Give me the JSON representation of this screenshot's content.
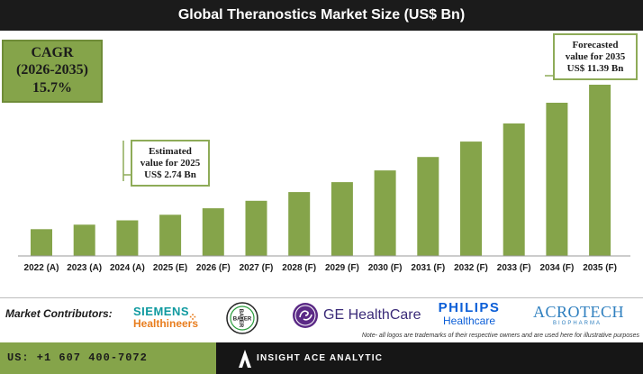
{
  "header": {
    "title": "Global Theranostics Market Size (US$ Bn)"
  },
  "cagr": {
    "label": "CAGR",
    "period": "(2026-2035)",
    "value": "15.7%"
  },
  "callouts": {
    "estimated": {
      "line1": "Estimated",
      "line2": "value for 2025",
      "line3": "US$ 2.74 Bn"
    },
    "forecasted": {
      "line1": "Forecasted",
      "line2": "value for 2035",
      "line3": "US$ 11.39 Bn"
    }
  },
  "chart_data": {
    "type": "bar",
    "categories": [
      "2022 (A)",
      "2023 (A)",
      "2024 (A)",
      "2025 (E)",
      "2026 (F)",
      "2027 (F)",
      "2028 (F)",
      "2029 (F)",
      "2030 (F)",
      "2031 (F)",
      "2032 (F)",
      "2033 (F)",
      "2034 (F)",
      "2035 (F)"
    ],
    "values": [
      1.78,
      2.08,
      2.37,
      2.74,
      3.17,
      3.67,
      4.25,
      4.91,
      5.69,
      6.58,
      7.61,
      8.81,
      10.19,
      11.39
    ],
    "title": "Global Theranostics Market Size (US$ Bn)",
    "xlabel": "",
    "ylabel": "",
    "ylim": [
      0,
      11.39
    ],
    "grid": false,
    "bar_color": "#85a44a"
  },
  "contributors": {
    "label": "Market Contributors:",
    "siemens_line1": "SIEMENS",
    "siemens_line2": "Healthineers",
    "bayer": "BAYER",
    "ge": "GE HealthCare",
    "philips_line1": "PHILIPS",
    "philips_line2": "Healthcare",
    "acrotech_line1": "ACROTECH",
    "acrotech_line2": "BIOPHARMA"
  },
  "note": "Note- all logos are trademarks of their respective owners and are used here for illustrative purposes",
  "footer": {
    "phone": "US: +1 607 400-7072",
    "brand": "INSIGHT ACE ANALYTIC"
  },
  "colors": {
    "accent": "#85a44a",
    "dark": "#1b1b1b"
  }
}
